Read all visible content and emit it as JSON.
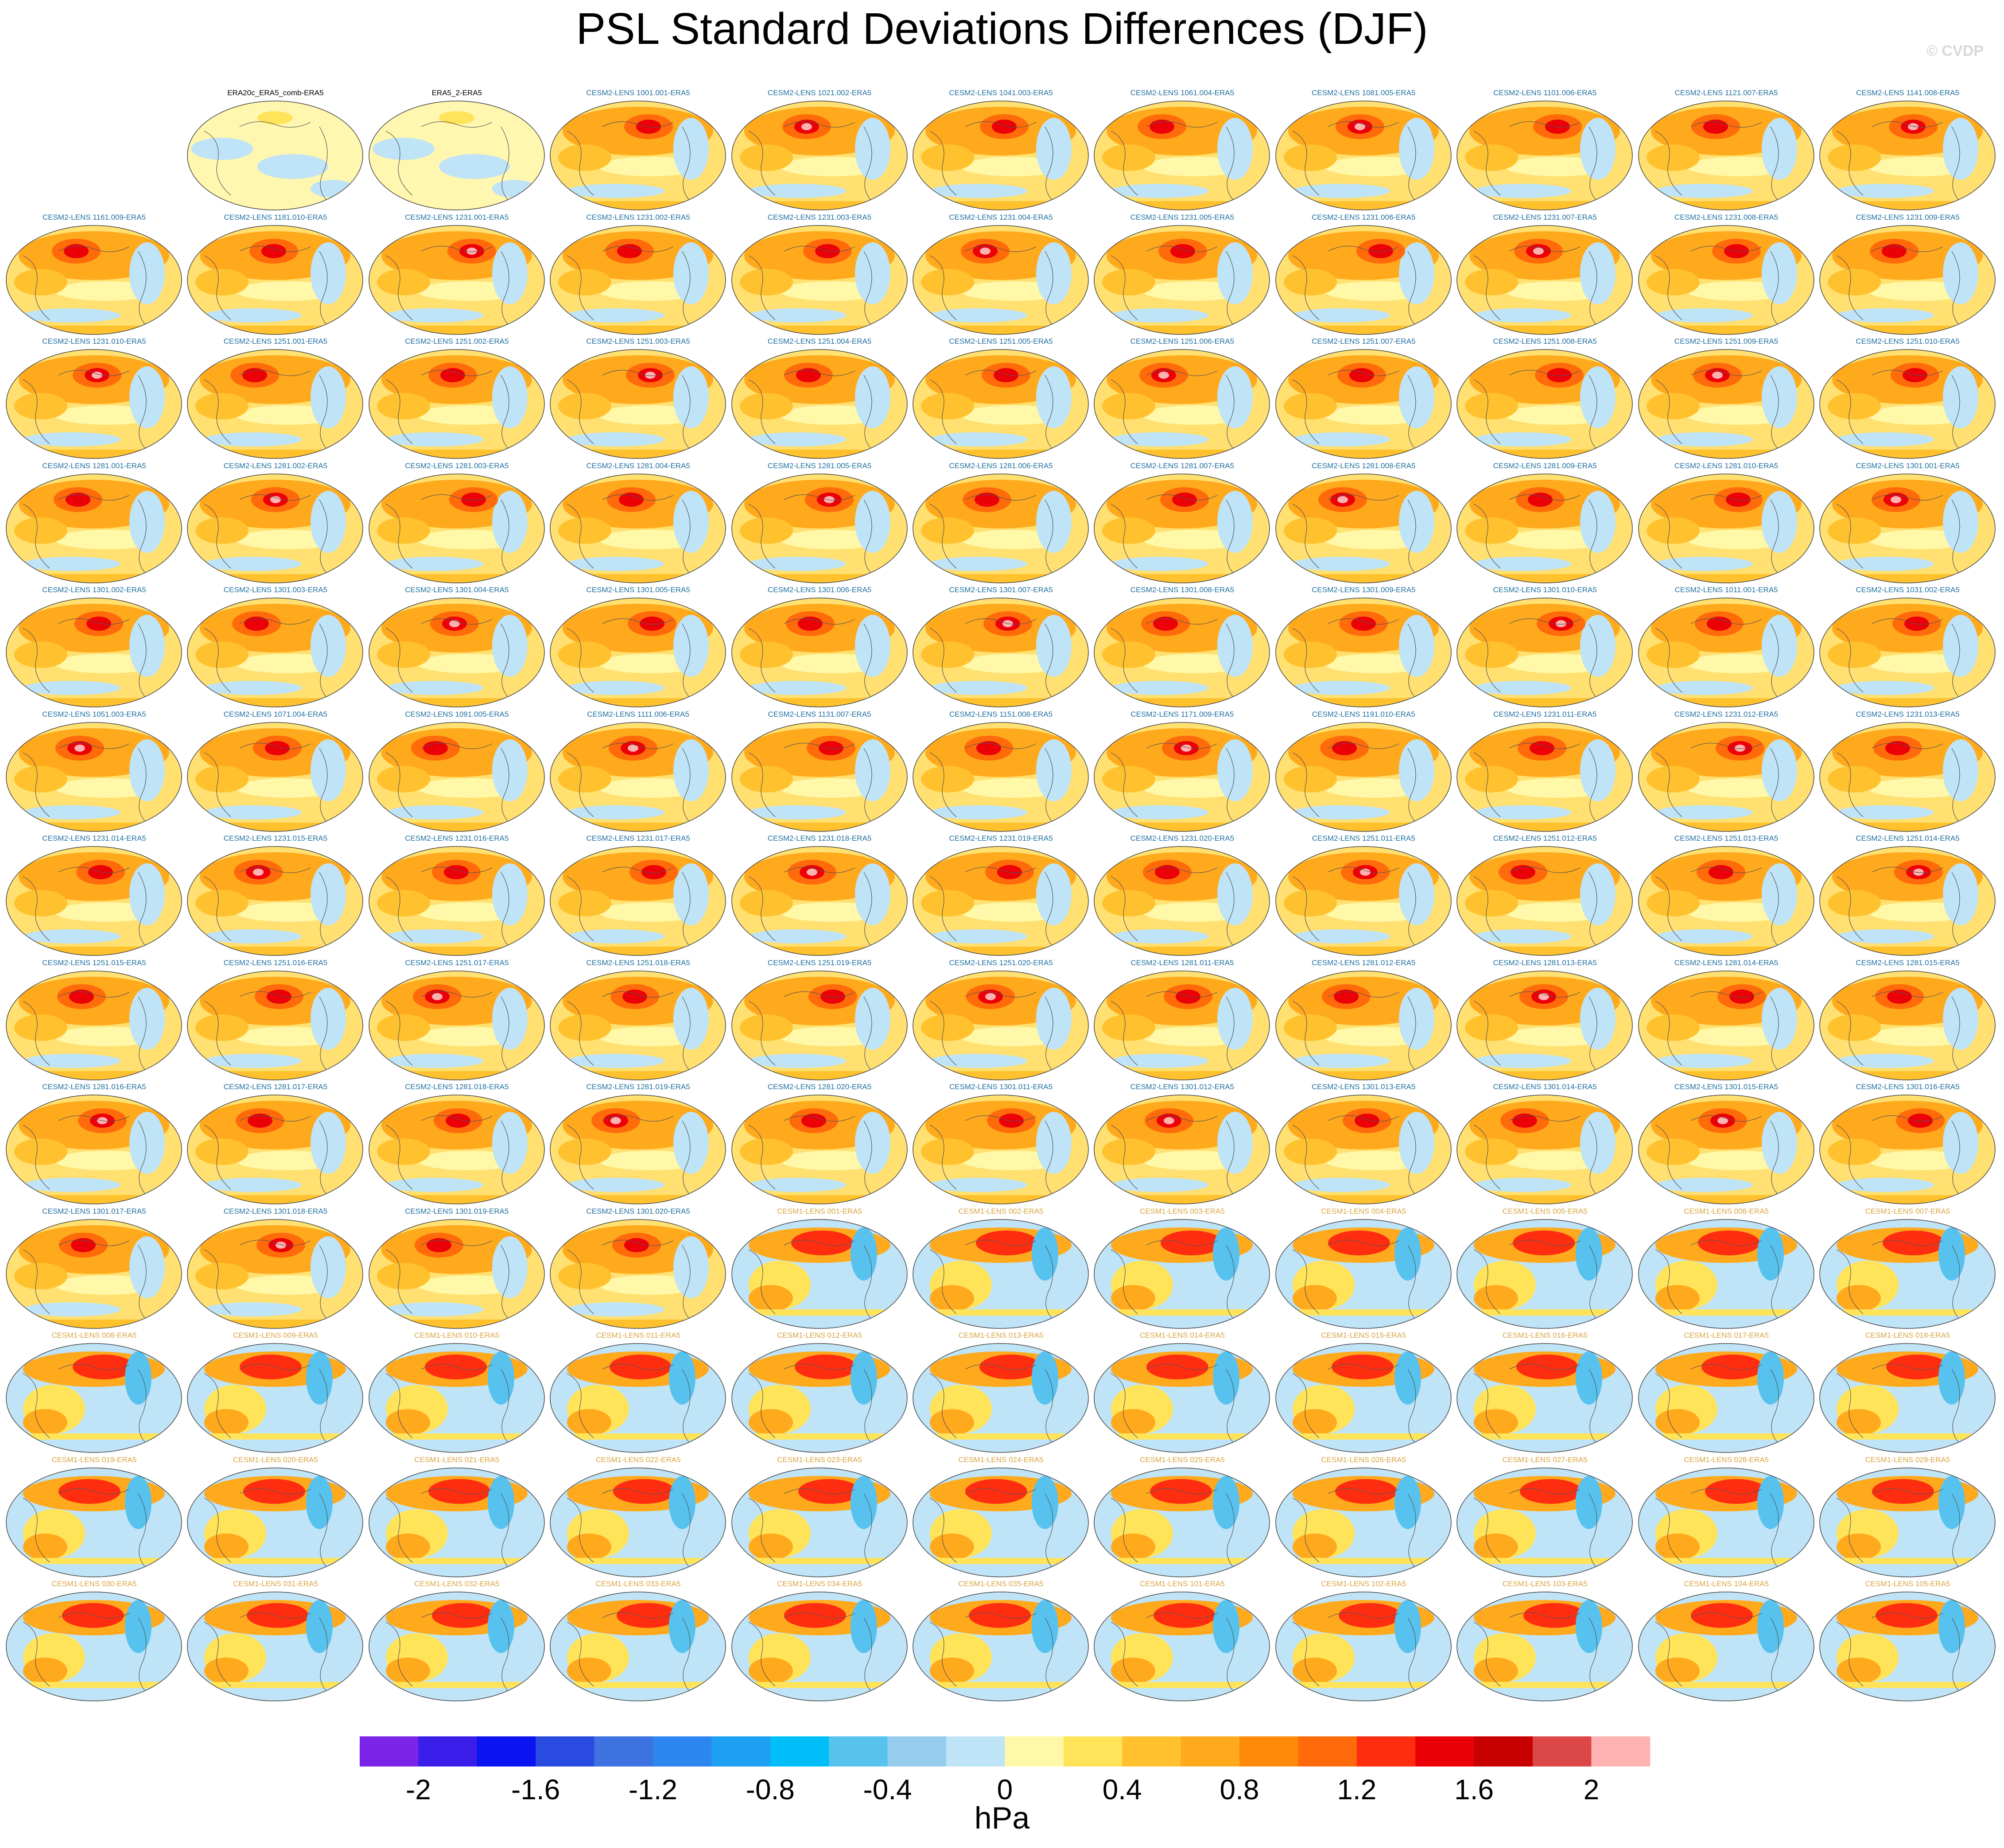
{
  "title": "PSL Standard Deviations Differences (DJF)",
  "watermark": "© CVDP",
  "colorbar": {
    "units": "hPa",
    "tick_labels": [
      "-2",
      "-1.6",
      "-1.2",
      "-0.8",
      "-0.4",
      "0",
      "0.4",
      "0.8",
      "1.2",
      "1.6",
      "2"
    ],
    "colors": [
      "#7b24e8",
      "#3a1de8",
      "#0a13f0",
      "#2a4be0",
      "#3e72e0",
      "#2d87f0",
      "#1ea0f2",
      "#00bff8",
      "#58c2ee",
      "#96cdee",
      "#bfe3f7",
      "#fff8a8",
      "#ffe45a",
      "#ffc22e",
      "#ffa91c",
      "#ff8a0a",
      "#ff6a0a",
      "#ff2d10",
      "#ec0008",
      "#c80000",
      "#dc4848",
      "#ffb2b2"
    ]
  },
  "panels": [
    {
      "label": "ERA20c_ERA5_comb-ERA5",
      "group": "obs"
    },
    {
      "label": "ERA5_2-ERA5",
      "group": "obs"
    },
    {
      "label": "CESM2-LENS 1001.001-ERA5",
      "group": "c2"
    },
    {
      "label": "CESM2-LENS 1021.002-ERA5",
      "group": "c2"
    },
    {
      "label": "CESM2-LENS 1041.003-ERA5",
      "group": "c2"
    },
    {
      "label": "CESM2-LENS 1061.004-ERA5",
      "group": "c2"
    },
    {
      "label": "CESM2-LENS 1081.005-ERA5",
      "group": "c2"
    },
    {
      "label": "CESM2-LENS 1101.006-ERA5",
      "group": "c2"
    },
    {
      "label": "CESM2-LENS 1121.007-ERA5",
      "group": "c2"
    },
    {
      "label": "CESM2-LENS 1141.008-ERA5",
      "group": "c2"
    },
    {
      "label": "CESM2-LENS 1161.009-ERA5",
      "group": "c2"
    },
    {
      "label": "CESM2-LENS 1181.010-ERA5",
      "group": "c2"
    },
    {
      "label": "CESM2-LENS 1231.001-ERA5",
      "group": "c2"
    },
    {
      "label": "CESM2-LENS 1231.002-ERA5",
      "group": "c2"
    },
    {
      "label": "CESM2-LENS 1231.003-ERA5",
      "group": "c2"
    },
    {
      "label": "CESM2-LENS 1231.004-ERA5",
      "group": "c2"
    },
    {
      "label": "CESM2-LENS 1231.005-ERA5",
      "group": "c2"
    },
    {
      "label": "CESM2-LENS 1231.006-ERA5",
      "group": "c2"
    },
    {
      "label": "CESM2-LENS 1231.007-ERA5",
      "group": "c2"
    },
    {
      "label": "CESM2-LENS 1231.008-ERA5",
      "group": "c2"
    },
    {
      "label": "CESM2-LENS 1231.009-ERA5",
      "group": "c2"
    },
    {
      "label": "CESM2-LENS 1231.010-ERA5",
      "group": "c2"
    },
    {
      "label": "CESM2-LENS 1251.001-ERA5",
      "group": "c2"
    },
    {
      "label": "CESM2-LENS 1251.002-ERA5",
      "group": "c2"
    },
    {
      "label": "CESM2-LENS 1251.003-ERA5",
      "group": "c2"
    },
    {
      "label": "CESM2-LENS 1251.004-ERA5",
      "group": "c2"
    },
    {
      "label": "CESM2-LENS 1251.005-ERA5",
      "group": "c2"
    },
    {
      "label": "CESM2-LENS 1251.006-ERA5",
      "group": "c2"
    },
    {
      "label": "CESM2-LENS 1251.007-ERA5",
      "group": "c2"
    },
    {
      "label": "CESM2-LENS 1251.008-ERA5",
      "group": "c2"
    },
    {
      "label": "CESM2-LENS 1251.009-ERA5",
      "group": "c2"
    },
    {
      "label": "CESM2-LENS 1251.010-ERA5",
      "group": "c2"
    },
    {
      "label": "CESM2-LENS 1281.001-ERA5",
      "group": "c2"
    },
    {
      "label": "CESM2-LENS 1281.002-ERA5",
      "group": "c2"
    },
    {
      "label": "CESM2-LENS 1281.003-ERA5",
      "group": "c2"
    },
    {
      "label": "CESM2-LENS 1281.004-ERA5",
      "group": "c2"
    },
    {
      "label": "CESM2-LENS 1281.005-ERA5",
      "group": "c2"
    },
    {
      "label": "CESM2-LENS 1281.006-ERA5",
      "group": "c2"
    },
    {
      "label": "CESM2-LENS 1281.007-ERA5",
      "group": "c2"
    },
    {
      "label": "CESM2-LENS 1281.008-ERA5",
      "group": "c2"
    },
    {
      "label": "CESM2-LENS 1281.009-ERA5",
      "group": "c2"
    },
    {
      "label": "CESM2-LENS 1281.010-ERA5",
      "group": "c2"
    },
    {
      "label": "CESM2-LENS 1301.001-ERA5",
      "group": "c2"
    },
    {
      "label": "CESM2-LENS 1301.002-ERA5",
      "group": "c2"
    },
    {
      "label": "CESM2-LENS 1301.003-ERA5",
      "group": "c2"
    },
    {
      "label": "CESM2-LENS 1301.004-ERA5",
      "group": "c2"
    },
    {
      "label": "CESM2-LENS 1301.005-ERA5",
      "group": "c2"
    },
    {
      "label": "CESM2-LENS 1301.006-ERA5",
      "group": "c2"
    },
    {
      "label": "CESM2-LENS 1301.007-ERA5",
      "group": "c2"
    },
    {
      "label": "CESM2-LENS 1301.008-ERA5",
      "group": "c2"
    },
    {
      "label": "CESM2-LENS 1301.009-ERA5",
      "group": "c2"
    },
    {
      "label": "CESM2-LENS 1301.010-ERA5",
      "group": "c2"
    },
    {
      "label": "CESM2-LENS 1011.001-ERA5",
      "group": "c2"
    },
    {
      "label": "CESM2-LENS 1031.002-ERA5",
      "group": "c2"
    },
    {
      "label": "CESM2-LENS 1051.003-ERA5",
      "group": "c2"
    },
    {
      "label": "CESM2-LENS 1071.004-ERA5",
      "group": "c2"
    },
    {
      "label": "CESM2-LENS 1091.005-ERA5",
      "group": "c2"
    },
    {
      "label": "CESM2-LENS 1111.006-ERA5",
      "group": "c2"
    },
    {
      "label": "CESM2-LENS 1131.007-ERA5",
      "group": "c2"
    },
    {
      "label": "CESM2-LENS 1151.008-ERA5",
      "group": "c2"
    },
    {
      "label": "CESM2-LENS 1171.009-ERA5",
      "group": "c2"
    },
    {
      "label": "CESM2-LENS 1191.010-ERA5",
      "group": "c2"
    },
    {
      "label": "CESM2-LENS 1231.011-ERA5",
      "group": "c2"
    },
    {
      "label": "CESM2-LENS 1231.012-ERA5",
      "group": "c2"
    },
    {
      "label": "CESM2-LENS 1231.013-ERA5",
      "group": "c2"
    },
    {
      "label": "CESM2-LENS 1231.014-ERA5",
      "group": "c2"
    },
    {
      "label": "CESM2-LENS 1231.015-ERA5",
      "group": "c2"
    },
    {
      "label": "CESM2-LENS 1231.016-ERA5",
      "group": "c2"
    },
    {
      "label": "CESM2-LENS 1231.017-ERA5",
      "group": "c2"
    },
    {
      "label": "CESM2-LENS 1231.018-ERA5",
      "group": "c2"
    },
    {
      "label": "CESM2-LENS 1231.019-ERA5",
      "group": "c2"
    },
    {
      "label": "CESM2-LENS 1231.020-ERA5",
      "group": "c2"
    },
    {
      "label": "CESM2-LENS 1251.011-ERA5",
      "group": "c2"
    },
    {
      "label": "CESM2-LENS 1251.012-ERA5",
      "group": "c2"
    },
    {
      "label": "CESM2-LENS 1251.013-ERA5",
      "group": "c2"
    },
    {
      "label": "CESM2-LENS 1251.014-ERA5",
      "group": "c2"
    },
    {
      "label": "CESM2-LENS 1251.015-ERA5",
      "group": "c2"
    },
    {
      "label": "CESM2-LENS 1251.016-ERA5",
      "group": "c2"
    },
    {
      "label": "CESM2-LENS 1251.017-ERA5",
      "group": "c2"
    },
    {
      "label": "CESM2-LENS 1251.018-ERA5",
      "group": "c2"
    },
    {
      "label": "CESM2-LENS 1251.019-ERA5",
      "group": "c2"
    },
    {
      "label": "CESM2-LENS 1251.020-ERA5",
      "group": "c2"
    },
    {
      "label": "CESM2-LENS 1281.011-ERA5",
      "group": "c2"
    },
    {
      "label": "CESM2-LENS 1281.012-ERA5",
      "group": "c2"
    },
    {
      "label": "CESM2-LENS 1281.013-ERA5",
      "group": "c2"
    },
    {
      "label": "CESM2-LENS 1281.014-ERA5",
      "group": "c2"
    },
    {
      "label": "CESM2-LENS 1281.015-ERA5",
      "group": "c2"
    },
    {
      "label": "CESM2-LENS 1281.016-ERA5",
      "group": "c2"
    },
    {
      "label": "CESM2-LENS 1281.017-ERA5",
      "group": "c2"
    },
    {
      "label": "CESM2-LENS 1281.018-ERA5",
      "group": "c2"
    },
    {
      "label": "CESM2-LENS 1281.019-ERA5",
      "group": "c2"
    },
    {
      "label": "CESM2-LENS 1281.020-ERA5",
      "group": "c2"
    },
    {
      "label": "CESM2-LENS 1301.011-ERA5",
      "group": "c2"
    },
    {
      "label": "CESM2-LENS 1301.012-ERA5",
      "group": "c2"
    },
    {
      "label": "CESM2-LENS 1301.013-ERA5",
      "group": "c2"
    },
    {
      "label": "CESM2-LENS 1301.014-ERA5",
      "group": "c2"
    },
    {
      "label": "CESM2-LENS 1301.015-ERA5",
      "group": "c2"
    },
    {
      "label": "CESM2-LENS 1301.016-ERA5",
      "group": "c2"
    },
    {
      "label": "CESM2-LENS 1301.017-ERA5",
      "group": "c2"
    },
    {
      "label": "CESM2-LENS 1301.018-ERA5",
      "group": "c2"
    },
    {
      "label": "CESM2-LENS 1301.019-ERA5",
      "group": "c2"
    },
    {
      "label": "CESM2-LENS 1301.020-ERA5",
      "group": "c2"
    },
    {
      "label": "CESM1-LENS 001-ERA5",
      "group": "c1"
    },
    {
      "label": "CESM1-LENS 002-ERA5",
      "group": "c1"
    },
    {
      "label": "CESM1-LENS 003-ERA5",
      "group": "c1"
    },
    {
      "label": "CESM1-LENS 004-ERA5",
      "group": "c1"
    },
    {
      "label": "CESM1-LENS 005-ERA5",
      "group": "c1"
    },
    {
      "label": "CESM1-LENS 006-ERA5",
      "group": "c1"
    },
    {
      "label": "CESM1-LENS 007-ERA5",
      "group": "c1"
    },
    {
      "label": "CESM1-LENS 008-ERA5",
      "group": "c1"
    },
    {
      "label": "CESM1-LENS 009-ERA5",
      "group": "c1"
    },
    {
      "label": "CESM1-LENS 010-ERA5",
      "group": "c1"
    },
    {
      "label": "CESM1-LENS 011-ERA5",
      "group": "c1"
    },
    {
      "label": "CESM1-LENS 012-ERA5",
      "group": "c1"
    },
    {
      "label": "CESM1-LENS 013-ERA5",
      "group": "c1"
    },
    {
      "label": "CESM1-LENS 014-ERA5",
      "group": "c1"
    },
    {
      "label": "CESM1-LENS 015-ERA5",
      "group": "c1"
    },
    {
      "label": "CESM1-LENS 016-ERA5",
      "group": "c1"
    },
    {
      "label": "CESM1-LENS 017-ERA5",
      "group": "c1"
    },
    {
      "label": "CESM1-LENS 018-ERA5",
      "group": "c1"
    },
    {
      "label": "CESM1-LENS 019-ERA5",
      "group": "c1"
    },
    {
      "label": "CESM1-LENS 020-ERA5",
      "group": "c1"
    },
    {
      "label": "CESM1-LENS 021-ERA5",
      "group": "c1"
    },
    {
      "label": "CESM1-LENS 022-ERA5",
      "group": "c1"
    },
    {
      "label": "CESM1-LENS 023-ERA5",
      "group": "c1"
    },
    {
      "label": "CESM1-LENS 024-ERA5",
      "group": "c1"
    },
    {
      "label": "CESM1-LENS 025-ERA5",
      "group": "c1"
    },
    {
      "label": "CESM1-LENS 026-ERA5",
      "group": "c1"
    },
    {
      "label": "CESM1-LENS 027-ERA5",
      "group": "c1"
    },
    {
      "label": "CESM1-LENS 028-ERA5",
      "group": "c1"
    },
    {
      "label": "CESM1-LENS 029-ERA5",
      "group": "c1"
    },
    {
      "label": "CESM1-LENS 030-ERA5",
      "group": "c1"
    },
    {
      "label": "CESM1-LENS 031-ERA5",
      "group": "c1"
    },
    {
      "label": "CESM1-LENS 032-ERA5",
      "group": "c1"
    },
    {
      "label": "CESM1-LENS 033-ERA5",
      "group": "c1"
    },
    {
      "label": "CESM1-LENS 034-ERA5",
      "group": "c1"
    },
    {
      "label": "CESM1-LENS 035-ERA5",
      "group": "c1"
    },
    {
      "label": "CESM1-LENS 101-ERA5",
      "group": "c1"
    },
    {
      "label": "CESM1-LENS 102-ERA5",
      "group": "c1"
    },
    {
      "label": "CESM1-LENS 103-ERA5",
      "group": "c1"
    },
    {
      "label": "CESM1-LENS 104-ERA5",
      "group": "c1"
    },
    {
      "label": "CESM1-LENS 105-ERA5",
      "group": "c1"
    }
  ]
}
